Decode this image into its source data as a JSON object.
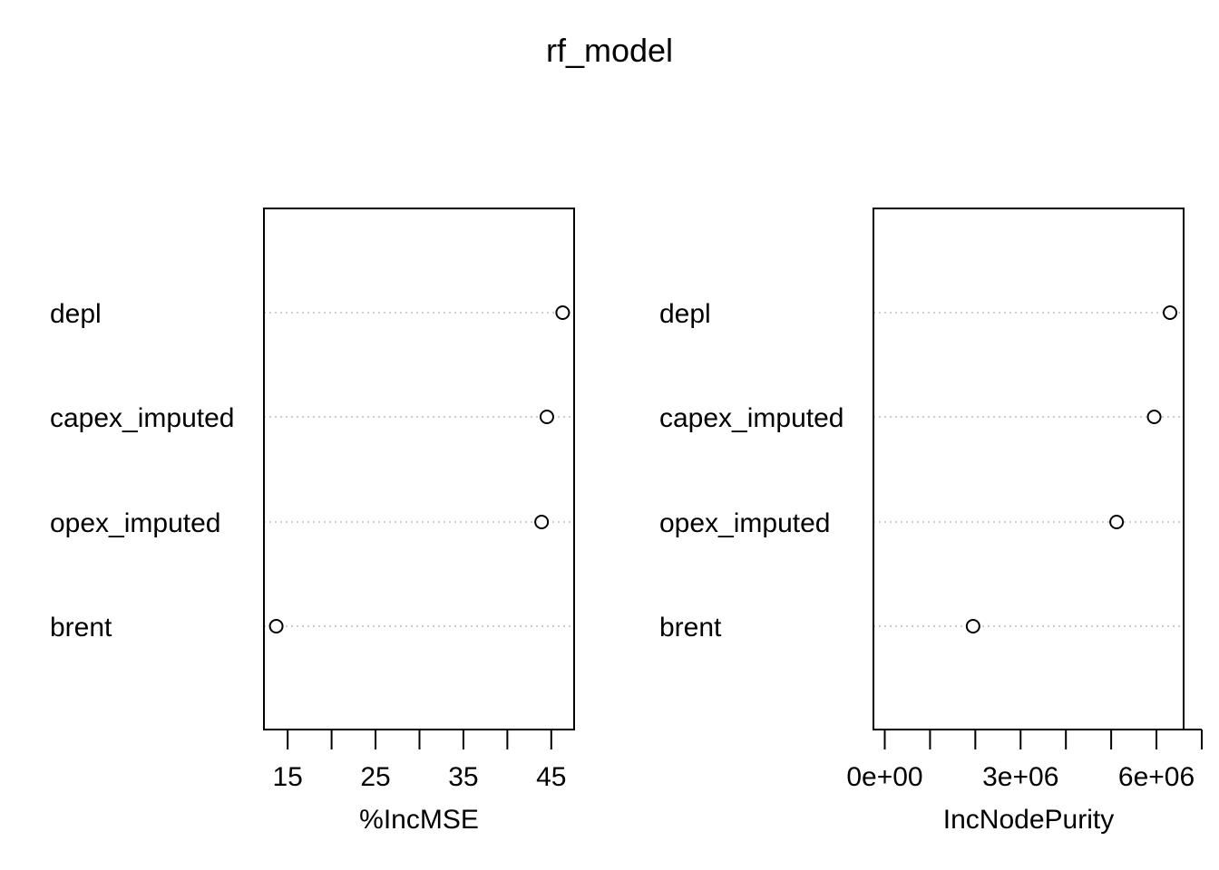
{
  "title": "rf_model",
  "chart_data": [
    {
      "type": "scatter",
      "subtype": "dotchart",
      "xlabel": "%IncMSE",
      "ylabel": "",
      "categories": [
        "depl",
        "capex_imputed",
        "opex_imputed",
        "brent"
      ],
      "values": [
        46.3,
        44.5,
        43.9,
        13.7
      ],
      "xlim": [
        12.3,
        47.6
      ],
      "xticks": [
        15,
        20,
        25,
        30,
        35,
        40,
        45
      ],
      "xticklabels": [
        "15",
        "",
        "25",
        "",
        "35",
        "",
        "45"
      ],
      "grid": "dotted horizontal lines per category",
      "legend": "none"
    },
    {
      "type": "scatter",
      "subtype": "dotchart",
      "xlabel": "IncNodePurity",
      "ylabel": "",
      "categories": [
        "depl",
        "capex_imputed",
        "opex_imputed",
        "brent"
      ],
      "values": [
        6300000,
        5950000,
        5120000,
        1950000
      ],
      "xlim": [
        -250000,
        6600000
      ],
      "xticks": [
        0,
        1000000,
        2000000,
        3000000,
        4000000,
        5000000,
        6000000,
        7000000
      ],
      "xticklabels": [
        "0e+00",
        "",
        "",
        "3e+06",
        "",
        "",
        "6e+06",
        ""
      ],
      "grid": "dotted horizontal lines per category",
      "legend": "none"
    }
  ]
}
